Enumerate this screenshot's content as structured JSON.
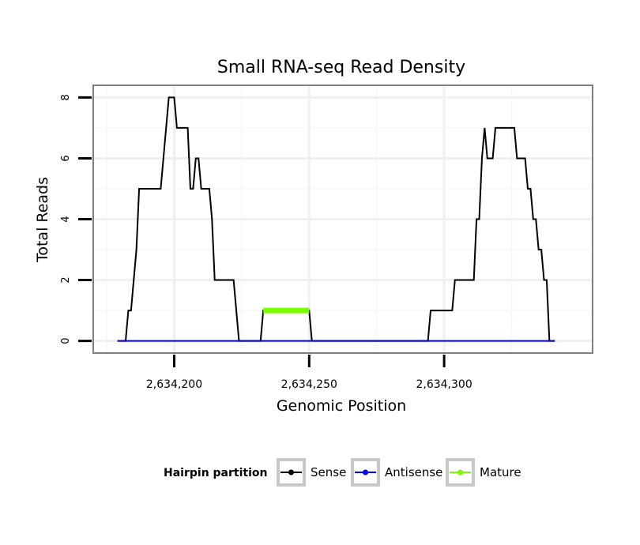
{
  "chart_data": {
    "type": "line",
    "title": "Small RNA-seq Read Density",
    "xlabel": "Genomic Position",
    "ylabel": "Total Reads",
    "xlim": [
      2634170,
      2634355
    ],
    "ylim": [
      -0.4,
      8.4
    ],
    "x_ticks": [
      2634200,
      2634250,
      2634300
    ],
    "x_tick_labels": [
      "2,634,200",
      "2,634,250",
      "2,634,300"
    ],
    "y_ticks": [
      0,
      2,
      4,
      6,
      8
    ],
    "y_tick_labels": [
      "0",
      "2",
      "4",
      "6",
      "8"
    ],
    "grid": true,
    "legend": {
      "title": "Hairpin partition",
      "position": "bottom",
      "entries": [
        "Sense",
        "Antisense",
        "Mature"
      ]
    },
    "series": [
      {
        "name": "Sense",
        "color": "#000000",
        "points": [
          [
            2634179,
            0
          ],
          [
            2634182,
            0
          ],
          [
            2634183,
            1
          ],
          [
            2634184,
            1
          ],
          [
            2634185,
            2
          ],
          [
            2634186,
            3
          ],
          [
            2634187,
            5
          ],
          [
            2634195,
            5
          ],
          [
            2634196,
            6
          ],
          [
            2634197,
            7
          ],
          [
            2634198,
            8
          ],
          [
            2634200,
            8
          ],
          [
            2634201,
            7
          ],
          [
            2634205,
            7
          ],
          [
            2634206,
            5
          ],
          [
            2634207,
            5
          ],
          [
            2634208,
            6
          ],
          [
            2634209,
            6
          ],
          [
            2634210,
            5
          ],
          [
            2634213,
            5
          ],
          [
            2634214,
            4
          ],
          [
            2634215,
            2
          ],
          [
            2634222,
            2
          ],
          [
            2634223,
            1
          ],
          [
            2634224,
            0
          ],
          [
            2634232,
            0
          ],
          [
            2634233,
            1
          ],
          [
            2634250,
            1
          ],
          [
            2634251,
            0
          ],
          [
            2634294,
            0
          ],
          [
            2634295,
            1
          ],
          [
            2634303,
            1
          ],
          [
            2634304,
            2
          ],
          [
            2634311,
            2
          ],
          [
            2634312,
            4
          ],
          [
            2634313,
            4
          ],
          [
            2634314,
            6
          ],
          [
            2634315,
            7
          ],
          [
            2634316,
            6
          ],
          [
            2634318,
            6
          ],
          [
            2634319,
            7
          ],
          [
            2634326,
            7
          ],
          [
            2634327,
            6
          ],
          [
            2634330,
            6
          ],
          [
            2634331,
            5
          ],
          [
            2634332,
            5
          ],
          [
            2634333,
            4
          ],
          [
            2634334,
            4
          ],
          [
            2634335,
            3
          ],
          [
            2634336,
            3
          ],
          [
            2634337,
            2
          ],
          [
            2634338,
            2
          ],
          [
            2634339,
            0
          ],
          [
            2634341,
            0
          ]
        ]
      },
      {
        "name": "Antisense",
        "color": "#0000ff",
        "points": [
          [
            2634179,
            0
          ],
          [
            2634341,
            0
          ]
        ]
      },
      {
        "name": "Mature",
        "color": "#7cfc00",
        "points": [
          [
            2634233,
            1
          ],
          [
            2634250,
            1
          ]
        ]
      }
    ]
  }
}
